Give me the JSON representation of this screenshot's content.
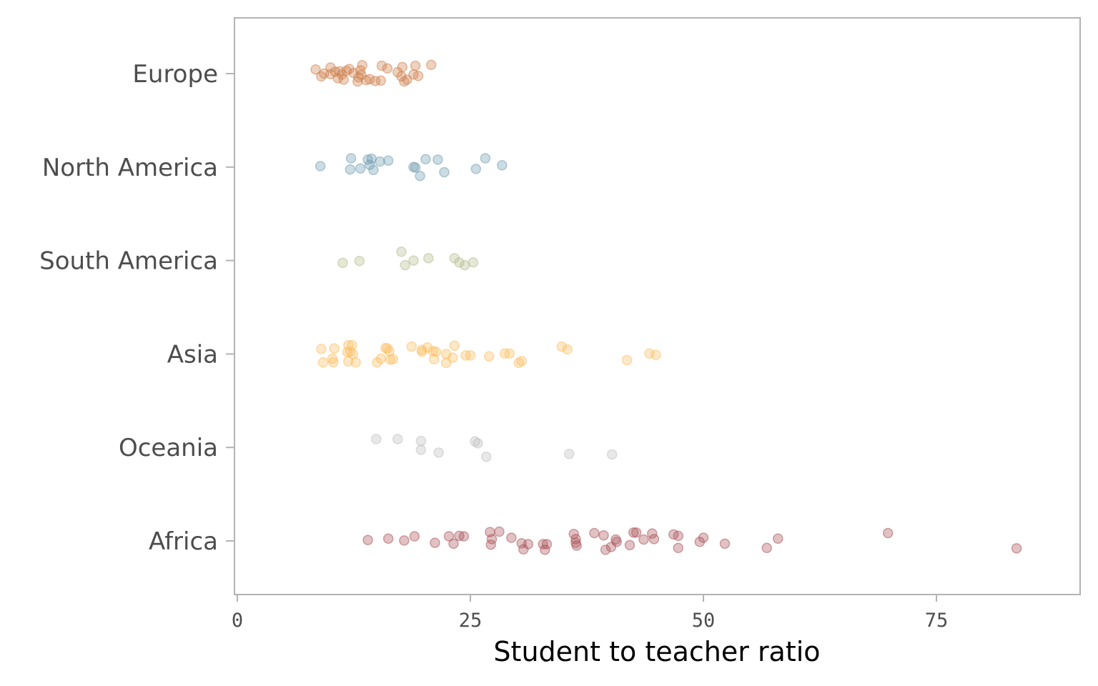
{
  "chart_data": {
    "type": "scatter",
    "title": "",
    "xlabel": "Student to teacher ratio",
    "ylabel": "",
    "xlim": [
      0,
      90
    ],
    "x_ticks": [
      "0",
      "25",
      "50",
      "75"
    ],
    "x_tick_values": [
      0,
      25,
      50,
      75
    ],
    "grid": false,
    "legend": "none",
    "point_opacity": 0.35,
    "categories": [
      "Europe",
      "North America",
      "South America",
      "Asia",
      "Oceania",
      "Africa"
    ],
    "series": [
      {
        "name": "Europe",
        "color": "#cd7f4a",
        "points": [
          {
            "x": 8.4,
            "jitter": 0.09
          },
          {
            "x": 9.0,
            "jitter": -0.06
          },
          {
            "x": 9.3,
            "jitter": 0.0
          },
          {
            "x": 10.0,
            "jitter": 0.13
          },
          {
            "x": 10.0,
            "jitter": -0.01
          },
          {
            "x": 10.5,
            "jitter": 0.04
          },
          {
            "x": 10.8,
            "jitter": -0.1
          },
          {
            "x": 11.0,
            "jitter": 0.05
          },
          {
            "x": 11.2,
            "jitter": -0.02
          },
          {
            "x": 11.4,
            "jitter": -0.13
          },
          {
            "x": 11.7,
            "jitter": 0.06
          },
          {
            "x": 12.0,
            "jitter": 0.1
          },
          {
            "x": 12.5,
            "jitter": 0.01
          },
          {
            "x": 12.9,
            "jitter": -0.17
          },
          {
            "x": 13.0,
            "jitter": -0.08
          },
          {
            "x": 13.2,
            "jitter": 0.07
          },
          {
            "x": 13.3,
            "jitter": -0.03
          },
          {
            "x": 13.4,
            "jitter": 0.18
          },
          {
            "x": 13.8,
            "jitter": -0.14
          },
          {
            "x": 14.2,
            "jitter": -0.12
          },
          {
            "x": 14.8,
            "jitter": -0.16
          },
          {
            "x": 15.4,
            "jitter": -0.15
          },
          {
            "x": 15.5,
            "jitter": 0.17
          },
          {
            "x": 16.1,
            "jitter": 0.11
          },
          {
            "x": 17.2,
            "jitter": 0.03
          },
          {
            "x": 17.6,
            "jitter": -0.06
          },
          {
            "x": 17.7,
            "jitter": 0.14
          },
          {
            "x": 17.9,
            "jitter": -0.17
          },
          {
            "x": 18.2,
            "jitter": -0.13
          },
          {
            "x": 18.9,
            "jitter": -0.02
          },
          {
            "x": 19.1,
            "jitter": 0.17
          },
          {
            "x": 19.4,
            "jitter": -0.05
          },
          {
            "x": 20.8,
            "jitter": 0.19
          }
        ]
      },
      {
        "name": "North America",
        "color": "#6e9cb0",
        "points": [
          {
            "x": 8.9,
            "jitter": 0.02
          },
          {
            "x": 12.1,
            "jitter": -0.05
          },
          {
            "x": 12.2,
            "jitter": 0.19
          },
          {
            "x": 13.2,
            "jitter": -0.03
          },
          {
            "x": 14.0,
            "jitter": 0.16
          },
          {
            "x": 14.2,
            "jitter": 0.05
          },
          {
            "x": 14.4,
            "jitter": 0.18
          },
          {
            "x": 14.6,
            "jitter": -0.06
          },
          {
            "x": 15.3,
            "jitter": 0.12
          },
          {
            "x": 16.2,
            "jitter": 0.14
          },
          {
            "x": 18.9,
            "jitter": 0.0
          },
          {
            "x": 19.1,
            "jitter": -0.01
          },
          {
            "x": 19.6,
            "jitter": -0.19
          },
          {
            "x": 20.2,
            "jitter": 0.17
          },
          {
            "x": 21.5,
            "jitter": 0.16
          },
          {
            "x": 22.2,
            "jitter": -0.11
          },
          {
            "x": 25.6,
            "jitter": -0.04
          },
          {
            "x": 26.6,
            "jitter": 0.19
          },
          {
            "x": 28.4,
            "jitter": 0.04
          }
        ]
      },
      {
        "name": "South America",
        "color": "#b4bb8c",
        "points": [
          {
            "x": 11.3,
            "jitter": -0.05
          },
          {
            "x": 13.1,
            "jitter": -0.01
          },
          {
            "x": 17.6,
            "jitter": 0.19
          },
          {
            "x": 18.0,
            "jitter": -0.1
          },
          {
            "x": 18.9,
            "jitter": 0.0
          },
          {
            "x": 20.5,
            "jitter": 0.05
          },
          {
            "x": 23.3,
            "jitter": 0.05
          },
          {
            "x": 23.8,
            "jitter": -0.04
          },
          {
            "x": 24.4,
            "jitter": -0.1
          },
          {
            "x": 25.3,
            "jitter": -0.04
          }
        ]
      },
      {
        "name": "Asia",
        "color": "#fdbe5e",
        "points": [
          {
            "x": 9.0,
            "jitter": 0.11
          },
          {
            "x": 9.2,
            "jitter": -0.18
          },
          {
            "x": 10.2,
            "jitter": -0.1
          },
          {
            "x": 10.3,
            "jitter": -0.18
          },
          {
            "x": 10.4,
            "jitter": 0.12
          },
          {
            "x": 11.8,
            "jitter": 0.04
          },
          {
            "x": 11.9,
            "jitter": 0.19
          },
          {
            "x": 11.9,
            "jitter": -0.16
          },
          {
            "x": 12.1,
            "jitter": 0.05
          },
          {
            "x": 12.3,
            "jitter": 0.19
          },
          {
            "x": 12.4,
            "jitter": 0.0
          },
          {
            "x": 12.7,
            "jitter": -0.18
          },
          {
            "x": 15.0,
            "jitter": -0.18
          },
          {
            "x": 15.4,
            "jitter": -0.1
          },
          {
            "x": 15.9,
            "jitter": 0.13
          },
          {
            "x": 16.1,
            "jitter": 0.12
          },
          {
            "x": 16.3,
            "jitter": 0.06
          },
          {
            "x": 16.4,
            "jitter": -0.12
          },
          {
            "x": 16.7,
            "jitter": -0.11
          },
          {
            "x": 18.7,
            "jitter": 0.16
          },
          {
            "x": 19.8,
            "jitter": 0.09
          },
          {
            "x": 19.8,
            "jitter": 0.05
          },
          {
            "x": 20.4,
            "jitter": 0.14
          },
          {
            "x": 21.0,
            "jitter": 0.06
          },
          {
            "x": 21.1,
            "jitter": -0.11
          },
          {
            "x": 21.3,
            "jitter": 0.05
          },
          {
            "x": 22.4,
            "jitter": 0.0
          },
          {
            "x": 22.4,
            "jitter": -0.19
          },
          {
            "x": 23.1,
            "jitter": -0.08
          },
          {
            "x": 23.3,
            "jitter": 0.18
          },
          {
            "x": 24.5,
            "jitter": -0.03
          },
          {
            "x": 25.0,
            "jitter": -0.03
          },
          {
            "x": 27.0,
            "jitter": -0.05
          },
          {
            "x": 28.7,
            "jitter": 0.01
          },
          {
            "x": 29.2,
            "jitter": 0.01
          },
          {
            "x": 30.2,
            "jitter": -0.19
          },
          {
            "x": 30.5,
            "jitter": -0.15
          },
          {
            "x": 34.8,
            "jitter": 0.16
          },
          {
            "x": 35.4,
            "jitter": 0.1
          },
          {
            "x": 41.8,
            "jitter": -0.13
          },
          {
            "x": 44.2,
            "jitter": 0.01
          },
          {
            "x": 44.9,
            "jitter": -0.02
          }
        ]
      },
      {
        "name": "Oceania",
        "color": "#bdbdbd",
        "points": [
          {
            "x": 14.9,
            "jitter": 0.18
          },
          {
            "x": 17.2,
            "jitter": 0.18
          },
          {
            "x": 19.7,
            "jitter": 0.14
          },
          {
            "x": 19.7,
            "jitter": -0.05
          },
          {
            "x": 21.6,
            "jitter": -0.11
          },
          {
            "x": 25.5,
            "jitter": 0.13
          },
          {
            "x": 25.8,
            "jitter": 0.09
          },
          {
            "x": 26.7,
            "jitter": -0.2
          },
          {
            "x": 35.6,
            "jitter": -0.14
          },
          {
            "x": 40.2,
            "jitter": -0.15
          }
        ]
      },
      {
        "name": "Africa",
        "color": "#a84f55",
        "points": [
          {
            "x": 14.0,
            "jitter": 0.02
          },
          {
            "x": 16.2,
            "jitter": 0.05
          },
          {
            "x": 17.9,
            "jitter": 0.01
          },
          {
            "x": 19.0,
            "jitter": 0.1
          },
          {
            "x": 21.2,
            "jitter": -0.04
          },
          {
            "x": 22.7,
            "jitter": 0.1
          },
          {
            "x": 23.2,
            "jitter": -0.06
          },
          {
            "x": 23.8,
            "jitter": 0.11
          },
          {
            "x": 24.3,
            "jitter": 0.1
          },
          {
            "x": 27.1,
            "jitter": 0.19
          },
          {
            "x": 27.2,
            "jitter": -0.08
          },
          {
            "x": 27.3,
            "jitter": 0.04
          },
          {
            "x": 28.1,
            "jitter": 0.2
          },
          {
            "x": 29.4,
            "jitter": 0.07
          },
          {
            "x": 30.5,
            "jitter": -0.05
          },
          {
            "x": 30.7,
            "jitter": -0.18
          },
          {
            "x": 31.2,
            "jitter": -0.07
          },
          {
            "x": 32.8,
            "jitter": -0.07
          },
          {
            "x": 33.0,
            "jitter": -0.19
          },
          {
            "x": 33.2,
            "jitter": -0.07
          },
          {
            "x": 36.1,
            "jitter": 0.15
          },
          {
            "x": 36.3,
            "jitter": 0.04
          },
          {
            "x": 36.3,
            "jitter": -0.04
          },
          {
            "x": 36.4,
            "jitter": -0.1
          },
          {
            "x": 38.3,
            "jitter": 0.17
          },
          {
            "x": 39.3,
            "jitter": 0.12
          },
          {
            "x": 39.5,
            "jitter": -0.19
          },
          {
            "x": 40.1,
            "jitter": -0.13
          },
          {
            "x": 40.6,
            "jitter": 0.03
          },
          {
            "x": 40.7,
            "jitter": -0.02
          },
          {
            "x": 42.1,
            "jitter": -0.09
          },
          {
            "x": 42.5,
            "jitter": 0.18
          },
          {
            "x": 42.8,
            "jitter": 0.18
          },
          {
            "x": 43.6,
            "jitter": 0.03
          },
          {
            "x": 44.5,
            "jitter": 0.16
          },
          {
            "x": 44.7,
            "jitter": 0.04
          },
          {
            "x": 46.8,
            "jitter": 0.14
          },
          {
            "x": 47.3,
            "jitter": 0.11
          },
          {
            "x": 47.3,
            "jitter": -0.15
          },
          {
            "x": 49.6,
            "jitter": -0.02
          },
          {
            "x": 50.0,
            "jitter": 0.07
          },
          {
            "x": 52.3,
            "jitter": -0.06
          },
          {
            "x": 56.8,
            "jitter": -0.15
          },
          {
            "x": 58.0,
            "jitter": 0.05
          },
          {
            "x": 69.8,
            "jitter": 0.17
          },
          {
            "x": 83.6,
            "jitter": -0.16
          }
        ]
      }
    ]
  }
}
